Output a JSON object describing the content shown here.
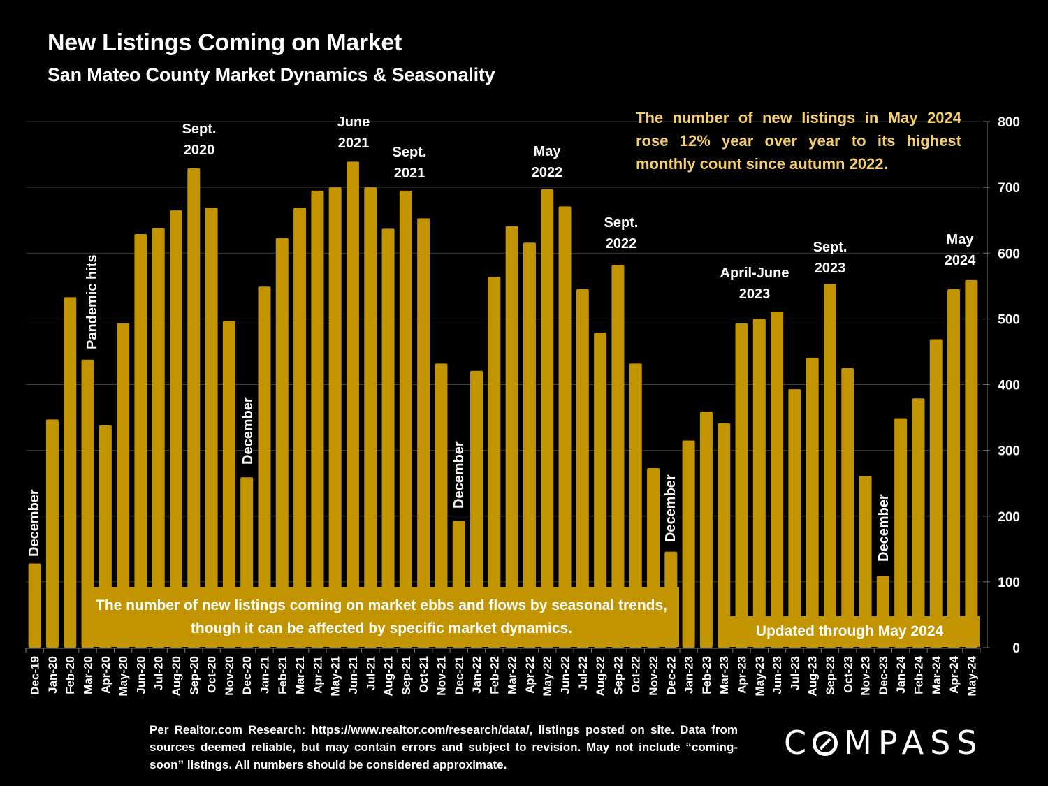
{
  "header": {
    "title": "New Listings Coming on Market",
    "subtitle": "San Mateo County Market Dynamics & Seasonality"
  },
  "callout": "The number of new listings in May 2024 rose 12% year over year to its highest monthly count since autumn 2022.",
  "annotations": {
    "sept_2020": [
      "Sept.",
      "2020"
    ],
    "june_2021": [
      "June",
      "2021"
    ],
    "sept_2021": [
      "Sept.",
      "2021"
    ],
    "may_2022": [
      "May",
      "2022"
    ],
    "sept_2022": [
      "Sept.",
      "2022"
    ],
    "april_june_2023": [
      "April-June",
      "2023"
    ],
    "sept_2023": [
      "Sept.",
      "2023"
    ],
    "may_2024": [
      "May",
      "2024"
    ],
    "pandemic": "Pandemic hits",
    "december": "December"
  },
  "boxes": {
    "main": "The number of new listings coming on market ebbs and flows by seasonal trends, though it can be affected by specific market dynamics.",
    "updated": "Updated through May 2024"
  },
  "footer": "Per Realtor.com Research:  https://www.realtor.com/research/data/, listings posted on site. Data from sources deemed reliable, but may contain errors and subject to revision. May not include “coming-soon” listings. All numbers should be considered approximate.",
  "logo": {
    "text_before": "C",
    "text_after": "MPASS",
    "icon": "compass-o-icon"
  },
  "colors": {
    "bar": "#c29400",
    "callout": "#f5cf6e",
    "background": "#000000",
    "grid": "#3a3a3a"
  },
  "chart_data": {
    "type": "bar",
    "title": "New Listings Coming on Market",
    "subtitle": "San Mateo County Market Dynamics & Seasonality",
    "xlabel": "",
    "ylabel": "",
    "ylim": [
      0,
      800
    ],
    "yticks": [
      0,
      100,
      200,
      300,
      400,
      500,
      600,
      700,
      800
    ],
    "yaxis_position": "right",
    "grid": true,
    "categories": [
      "Dec-19",
      "Jan-20",
      "Feb-20",
      "Mar-20",
      "Apr-20",
      "May-20",
      "Jun-20",
      "Jul-20",
      "Aug-20",
      "Sep-20",
      "Oct-20",
      "Nov-20",
      "Dec-20",
      "Jan-21",
      "Feb-21",
      "Mar-21",
      "Apr-21",
      "May-21",
      "Jun-21",
      "Jul-21",
      "Aug-21",
      "Sep-21",
      "Oct-21",
      "Nov-21",
      "Dec-21",
      "Jan-22",
      "Feb-22",
      "Mar-22",
      "Apr-22",
      "May-22",
      "Jun-22",
      "Jul-22",
      "Aug-22",
      "Sep-22",
      "Oct-22",
      "Nov-22",
      "Dec-22",
      "Jan-23",
      "Feb-23",
      "Mar-23",
      "Apr-23",
      "May-23",
      "Jun-23",
      "Jul-23",
      "Aug-23",
      "Sep-23",
      "Oct-23",
      "Nov-23",
      "Dec-23",
      "Jan-24",
      "Feb-24",
      "Mar-24",
      "Apr-24",
      "May-24"
    ],
    "values": [
      128,
      347,
      533,
      438,
      338,
      493,
      629,
      638,
      665,
      729,
      669,
      497,
      259,
      549,
      623,
      669,
      695,
      700,
      739,
      700,
      637,
      695,
      653,
      432,
      193,
      421,
      564,
      641,
      616,
      697,
      671,
      545,
      479,
      582,
      432,
      273,
      146,
      315,
      359,
      341,
      493,
      500,
      511,
      393,
      441,
      553,
      425,
      261,
      109,
      349,
      379,
      469,
      545,
      559
    ]
  }
}
